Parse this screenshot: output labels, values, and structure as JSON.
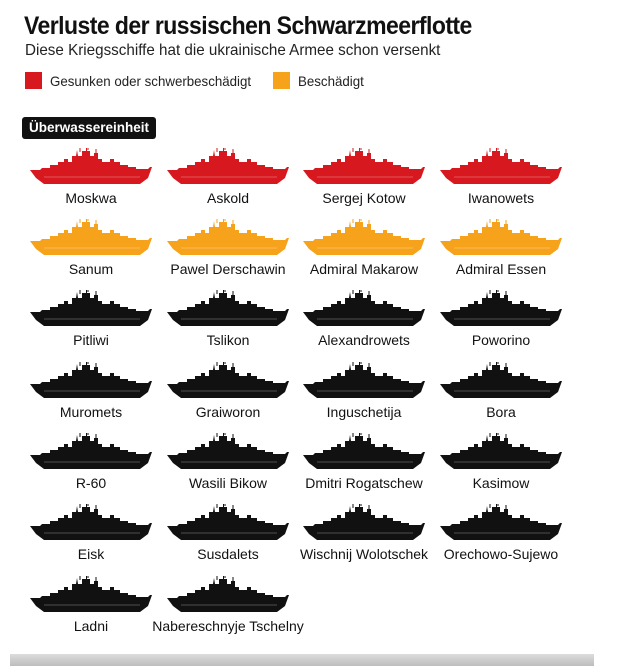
{
  "title": "Verluste der russischen Schwarzmeerflotte",
  "subtitle": "Diese Kriegsschiffe hat die ukrainische Armee schon versenkt",
  "legend": [
    {
      "label": "Gesunken oder schwerbeschädigt",
      "color": "#d7191f"
    },
    {
      "label": "Beschädigt",
      "color": "#f7a21b"
    }
  ],
  "colors": {
    "sunk": "#d7191f",
    "damaged": "#f7a21b",
    "other": "#111111"
  },
  "chart_data": {
    "type": "table",
    "title": "Verluste der russischen Schwarzmeerflotte",
    "subtitle": "Diese Kriegsschiffe hat die ukrainische Armee schon versenkt",
    "category": "Überwassereinheit",
    "ships": [
      {
        "name": "Moskwa",
        "status": "sunk"
      },
      {
        "name": "Askold",
        "status": "sunk"
      },
      {
        "name": "Sergej Kotow",
        "status": "sunk"
      },
      {
        "name": "Iwanowets",
        "status": "sunk"
      },
      {
        "name": "Sanum",
        "status": "damaged"
      },
      {
        "name": "Pawel Derschawin",
        "status": "damaged"
      },
      {
        "name": "Admiral Makarow",
        "status": "damaged"
      },
      {
        "name": "Admiral Essen",
        "status": "damaged"
      },
      {
        "name": "Pitliwi",
        "status": "other"
      },
      {
        "name": "Tslikon",
        "status": "other"
      },
      {
        "name": "Alexandrowets",
        "status": "other"
      },
      {
        "name": "Poworino",
        "status": "other"
      },
      {
        "name": "Muromets",
        "status": "other"
      },
      {
        "name": "Graiworon",
        "status": "other"
      },
      {
        "name": "Inguschetija",
        "status": "other"
      },
      {
        "name": "Bora",
        "status": "other"
      },
      {
        "name": "R-60",
        "status": "other"
      },
      {
        "name": "Wasili Bikow",
        "status": "other"
      },
      {
        "name": "Dmitri Rogatschew",
        "status": "other"
      },
      {
        "name": "Kasimow",
        "status": "other"
      },
      {
        "name": "Eisk",
        "status": "other"
      },
      {
        "name": "Susdalets",
        "status": "other"
      },
      {
        "name": "Wischnij Wolotschek",
        "status": "other"
      },
      {
        "name": "Orechowo-Sujewo",
        "status": "other"
      },
      {
        "name": "Ladni",
        "status": "other"
      },
      {
        "name": "Nabereschnyje Tschelny",
        "status": "other"
      }
    ]
  }
}
